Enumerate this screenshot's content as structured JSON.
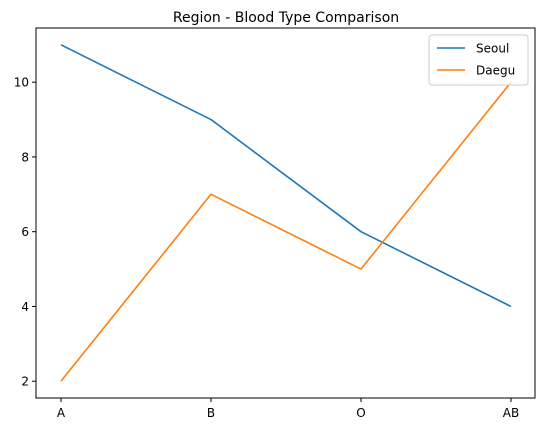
{
  "chart_data": {
    "type": "line",
    "title": "Region - Blood Type Comparison",
    "xlabel": "",
    "ylabel": "",
    "categories": [
      "A",
      "B",
      "O",
      "AB"
    ],
    "ylim": [
      1.55,
      11.45
    ],
    "yticks": [
      2,
      4,
      6,
      8,
      10
    ],
    "grid": false,
    "legend_position": "top-right",
    "series": [
      {
        "name": "Seoul",
        "color": "#1f77b4",
        "values": [
          11,
          9,
          6,
          4
        ]
      },
      {
        "name": "Daegu",
        "color": "#ff7f0e",
        "values": [
          2,
          7,
          5,
          10
        ]
      }
    ]
  }
}
